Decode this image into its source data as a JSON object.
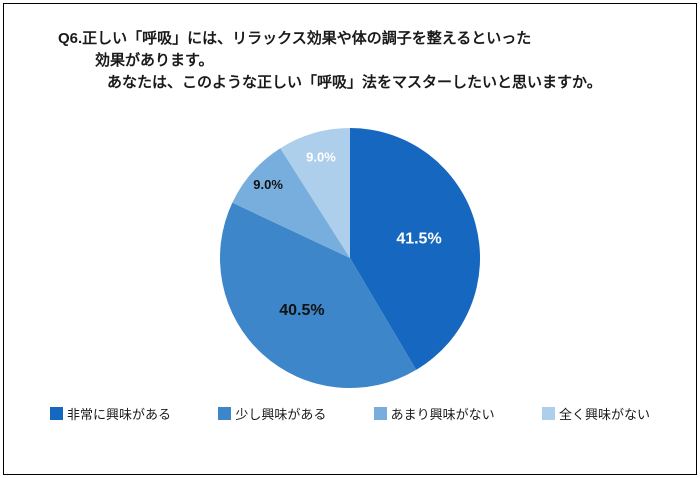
{
  "title": {
    "line1": "Q6.正しい「呼吸」には、リラックス効果や体の調子を整えるといった",
    "line2": "効果があります。",
    "line3": "あなたは、このような正しい「呼吸」法をマスターしたいと思いますか。"
  },
  "chart_data": {
    "type": "pie",
    "title": "Q6.正しい「呼吸」には、リラックス効果や体の調子を整えるといった効果があります。あなたは、このような正しい「呼吸」法をマスターしたいと思いますか。",
    "labels": [
      "非常に興味がある",
      "少し興味がある",
      "あまり興味がない",
      "全く興味がない"
    ],
    "values": [
      41.5,
      40.5,
      9.0,
      9.0
    ],
    "value_labels": [
      "41.5%",
      "40.5%",
      "9.0%",
      "9.0%"
    ],
    "colors": [
      "#1667bf",
      "#3e86ca",
      "#78aedd",
      "#aecfec"
    ],
    "start_angle": 0,
    "direction": "clockwise",
    "legend_position": "bottom",
    "label_layout": [
      {
        "r": 0.55,
        "color": "#ffffff",
        "size": 16
      },
      {
        "r": 0.55,
        "color": "#111111",
        "size": 16
      },
      {
        "r": 0.84,
        "color": "#111111",
        "size": 13
      },
      {
        "r": 0.8,
        "color": "#ffffff",
        "size": 13
      }
    ]
  }
}
